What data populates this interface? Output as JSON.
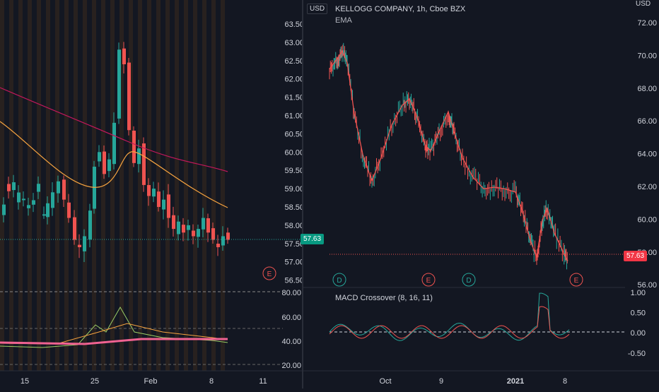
{
  "left": {
    "price_axis_ticks": [
      "63.50",
      "63.00",
      "62.50",
      "62.00",
      "61.50",
      "61.00",
      "60.50",
      "60.00",
      "59.50",
      "59.00",
      "58.50",
      "58.00",
      "57.50",
      "57.00",
      "56.50"
    ],
    "osc_axis_ticks": [
      "80.00",
      "60.00",
      "40.00",
      "20.00"
    ],
    "time_labels": [
      "15",
      "25",
      "Feb",
      "8",
      "11"
    ],
    "last_price": "57.63",
    "earnings_marker": "E",
    "currency": "USD"
  },
  "right": {
    "title": "KELLOGG COMPANY, 1h, Cboe BZX",
    "indicator": "EMA",
    "currency": "USD",
    "price_axis_ticks": [
      "72.00",
      "70.00",
      "68.00",
      "66.00",
      "64.00",
      "62.00",
      "60.00",
      "58.00",
      "56.00"
    ],
    "last_price": "57.63",
    "macd_title": "MACD Crossover (8, 16, 11)",
    "macd_axis_ticks": [
      "1.00",
      "0.50",
      "0.00",
      "-0.50"
    ],
    "time_labels": [
      "Oct",
      "9",
      "2021",
      "8"
    ],
    "markers": [
      {
        "label": "D",
        "type": "dividend"
      },
      {
        "label": "E",
        "type": "earnings"
      },
      {
        "label": "D",
        "type": "dividend"
      },
      {
        "label": "E",
        "type": "earnings"
      }
    ]
  },
  "colors": {
    "up": "#26a69a",
    "down": "#ef5350",
    "ema_fast": "#f7a440",
    "ema_slow": "#c2185b",
    "bg": "#131722",
    "grid": "#2a2e39",
    "stripe": "#3b2a1e"
  }
}
